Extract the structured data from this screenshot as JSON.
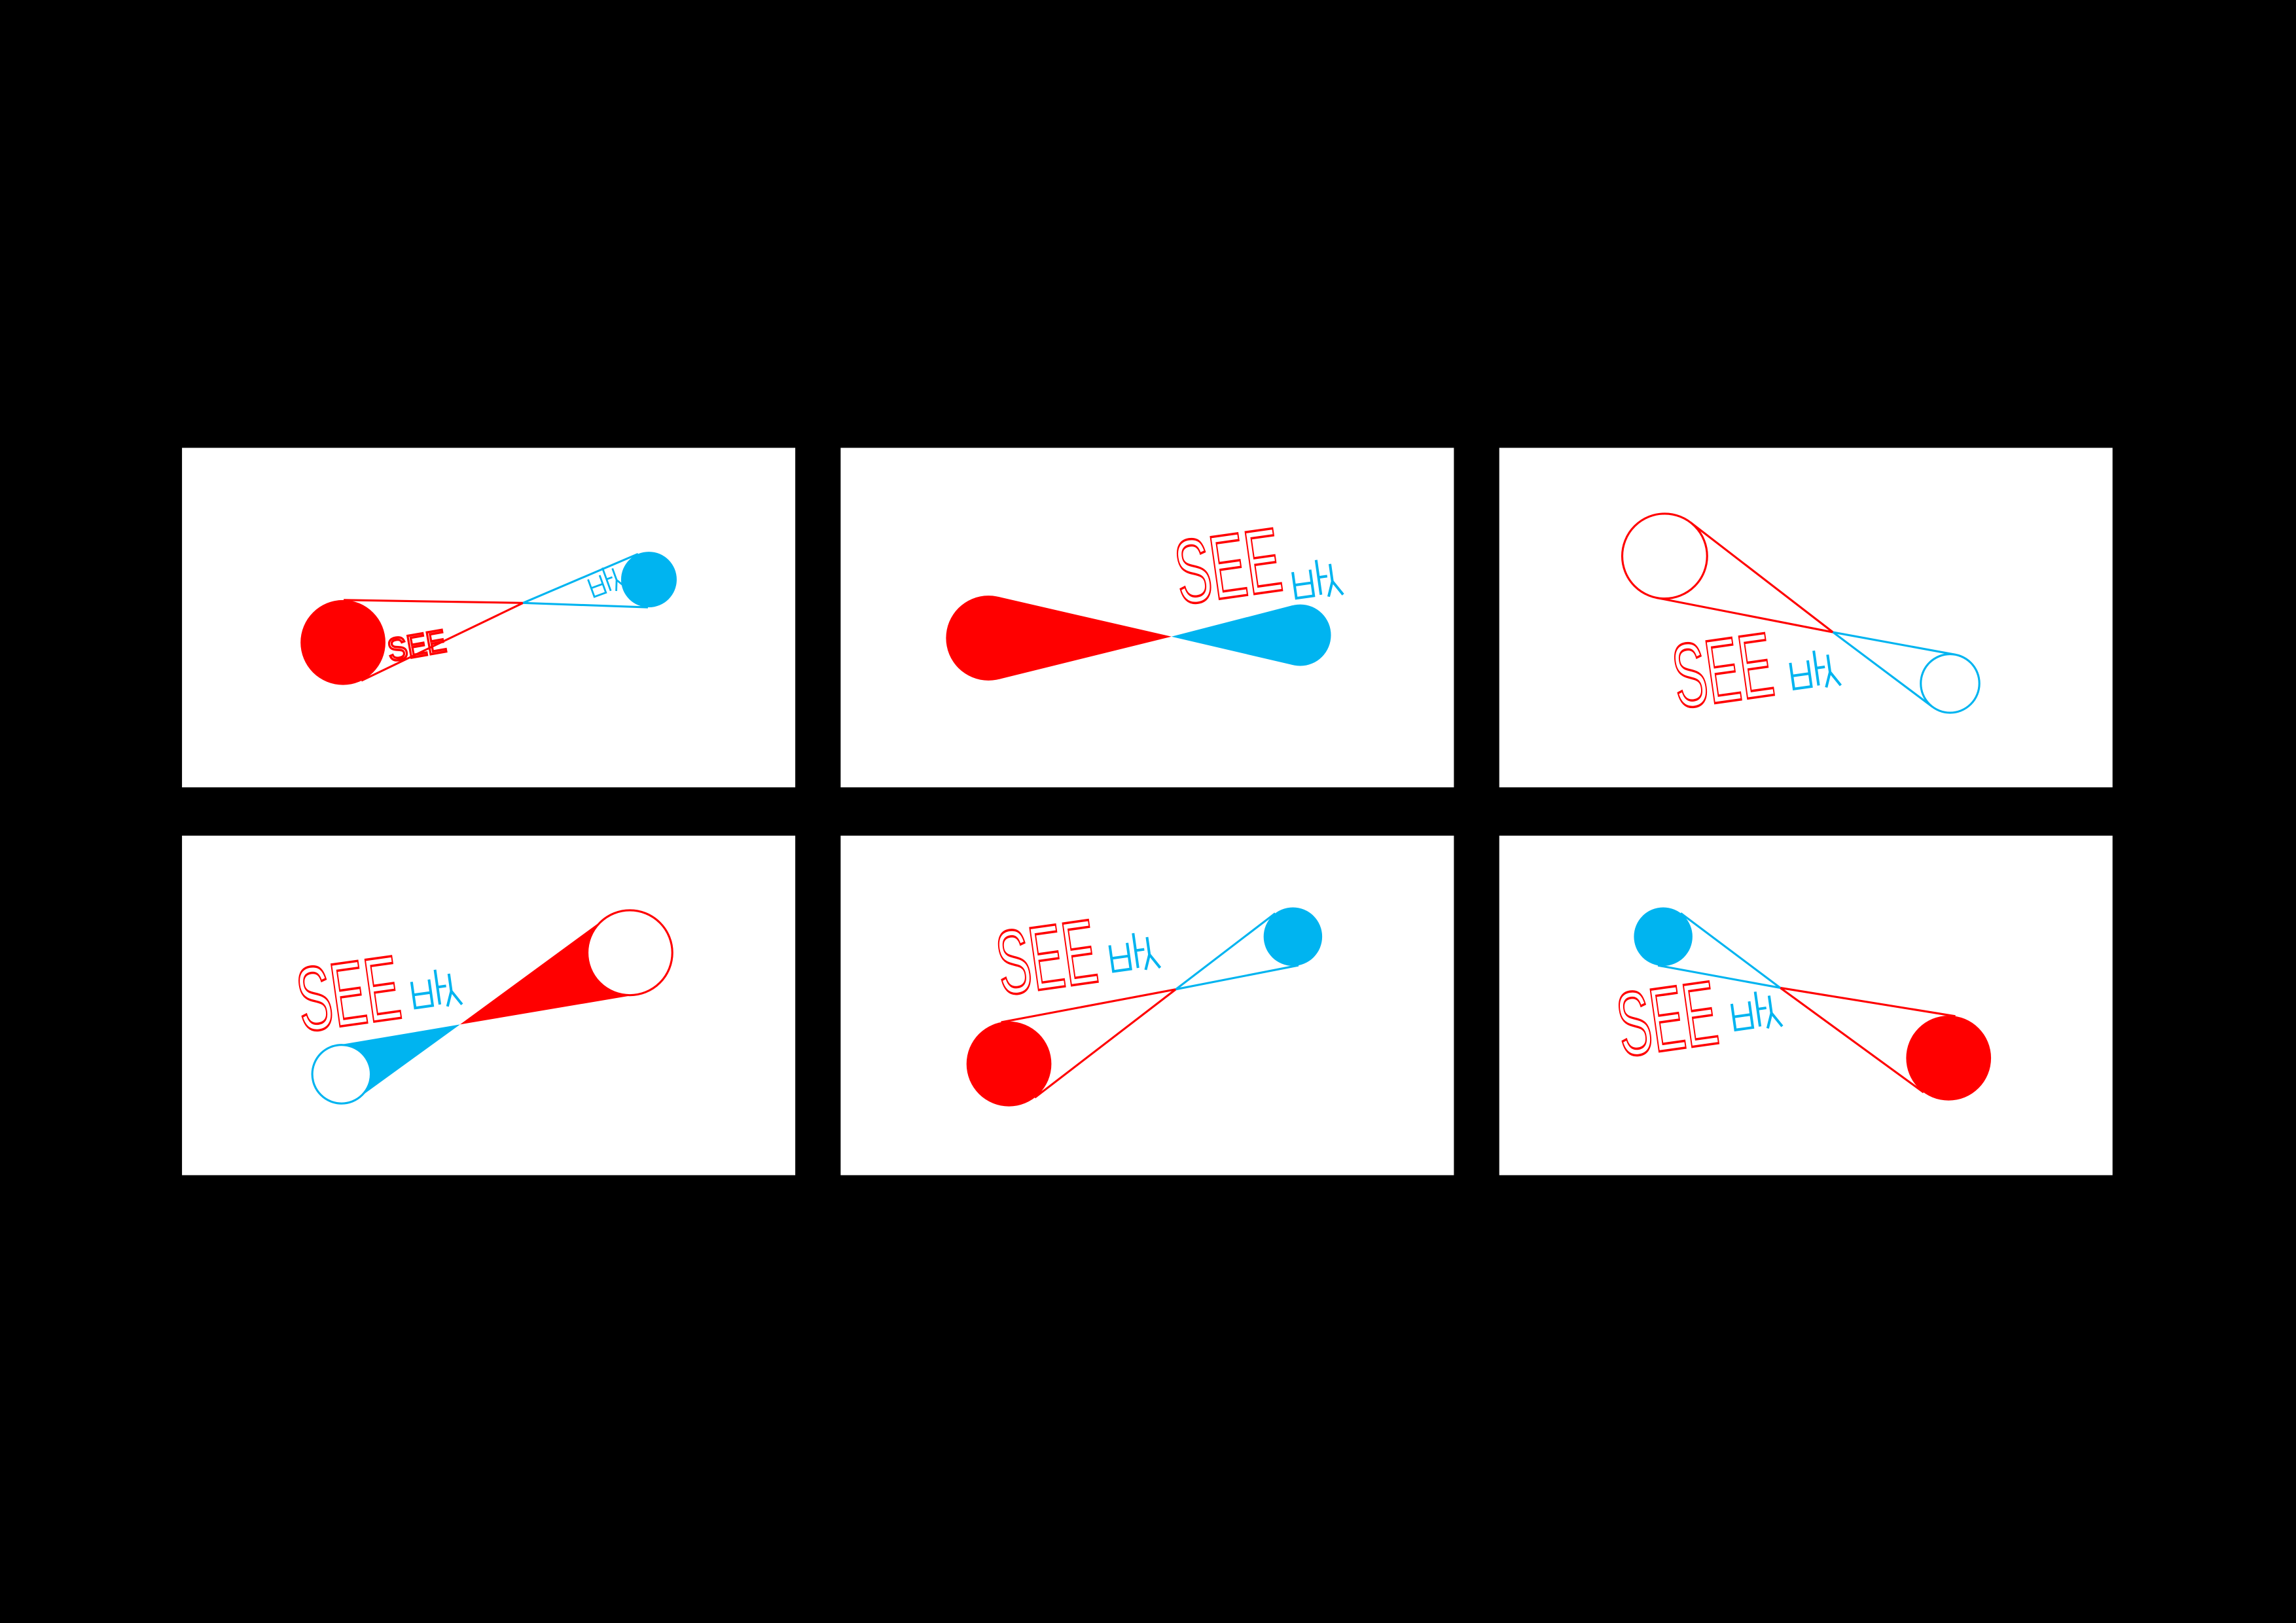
{
  "logo": {
    "wordmark": "SEE"
  }
}
